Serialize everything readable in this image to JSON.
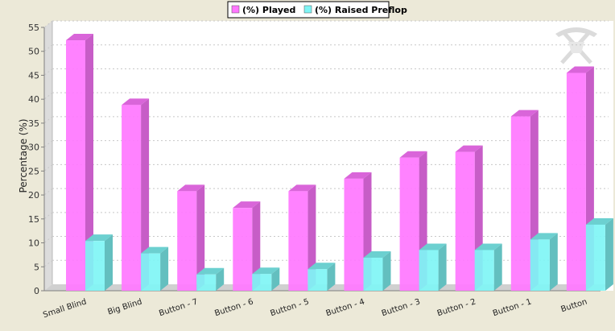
{
  "chart_data": {
    "type": "bar",
    "title": "",
    "xlabel": "",
    "ylabel": "Percentage (%)",
    "ylim": [
      0,
      55
    ],
    "yticks": [
      0,
      5,
      10,
      15,
      20,
      25,
      30,
      35,
      40,
      45,
      50,
      55
    ],
    "grid": true,
    "legend_position": "top-center",
    "categories": [
      "Small Blind",
      "Big Blind",
      "Button - 7",
      "Button - 6",
      "Button - 5",
      "Button - 4",
      "Button - 3",
      "Button - 2",
      "Button - 1",
      "Button"
    ],
    "series": [
      {
        "name": "(%) Played",
        "color": "#ff77ff",
        "values": [
          52.3,
          38.8,
          20.8,
          17.3,
          20.8,
          23.4,
          27.8,
          29.0,
          36.4,
          45.5
        ]
      },
      {
        "name": "(%) Raised Preflop",
        "color": "#7ff5f5",
        "values": [
          10.4,
          7.8,
          3.4,
          3.5,
          4.5,
          6.9,
          8.5,
          8.5,
          10.7,
          13.8
        ]
      }
    ],
    "watermark": "pickaxe-logo-icon"
  }
}
